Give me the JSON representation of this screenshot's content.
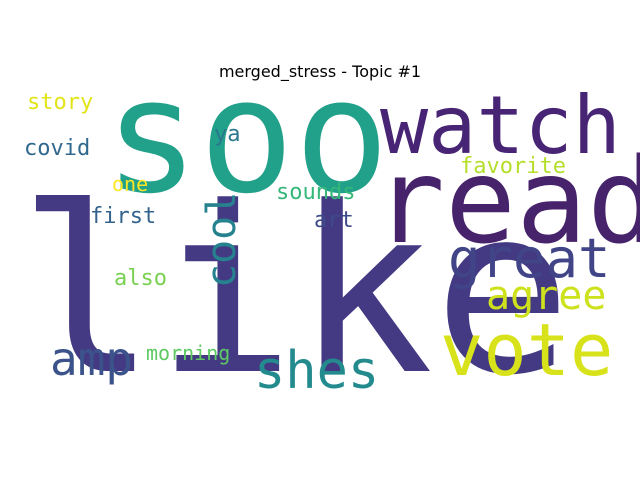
{
  "title": "merged_stress - Topic #1",
  "words": [
    {
      "text": "like",
      "color": "#443a83",
      "orientation": "horizontal"
    },
    {
      "text": "soo",
      "color": "#21a08a",
      "orientation": "horizontal"
    },
    {
      "text": "read",
      "color": "#46236b",
      "orientation": "horizontal"
    },
    {
      "text": "watch",
      "color": "#482475",
      "orientation": "horizontal"
    },
    {
      "text": "vote",
      "color": "#d8e21a",
      "orientation": "horizontal"
    },
    {
      "text": "great",
      "color": "#414487",
      "orientation": "horizontal"
    },
    {
      "text": "shes",
      "color": "#238a8d",
      "orientation": "horizontal"
    },
    {
      "text": "agree",
      "color": "#cde11d",
      "orientation": "horizontal"
    },
    {
      "text": "amp",
      "color": "#3b528b",
      "orientation": "horizontal"
    },
    {
      "text": "cool",
      "color": "#26828e",
      "orientation": "vertical"
    },
    {
      "text": "story",
      "color": "#e2e418",
      "orientation": "horizontal"
    },
    {
      "text": "covid",
      "color": "#31688e",
      "orientation": "horizontal"
    },
    {
      "text": "ya",
      "color": "#2a788e",
      "orientation": "horizontal"
    },
    {
      "text": "favorite",
      "color": "#b5de2b",
      "orientation": "horizontal"
    },
    {
      "text": "one",
      "color": "#fde725",
      "orientation": "horizontal"
    },
    {
      "text": "sounds",
      "color": "#35b779",
      "orientation": "horizontal"
    },
    {
      "text": "first",
      "color": "#33638d",
      "orientation": "horizontal"
    },
    {
      "text": "art",
      "color": "#3e4a89",
      "orientation": "horizontal"
    },
    {
      "text": "also",
      "color": "#7ad151",
      "orientation": "horizontal"
    },
    {
      "text": "morning",
      "color": "#5ec962",
      "orientation": "horizontal"
    }
  ]
}
